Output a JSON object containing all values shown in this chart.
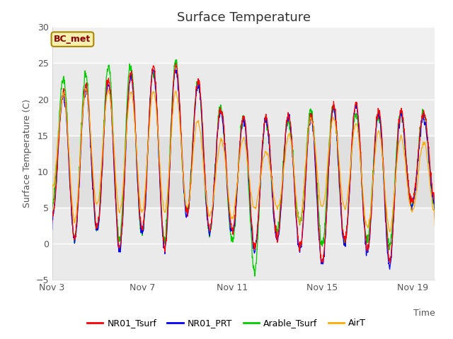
{
  "title": "Surface Temperature",
  "ylabel": "Surface Temperature (C)",
  "xlabel": "Time",
  "annotation": "BC_met",
  "ylim": [
    -5,
    30
  ],
  "yticks": [
    -5,
    0,
    5,
    10,
    15,
    20,
    25,
    30
  ],
  "xtick_labels": [
    "Nov 3",
    "Nov 7",
    "Nov 11",
    "Nov 15",
    "Nov 19"
  ],
  "xtick_pos": [
    0,
    4,
    8,
    12,
    16
  ],
  "xlim": [
    0,
    17
  ],
  "series": [
    "NR01_Tsurf",
    "NR01_PRT",
    "Arable_Tsurf",
    "AirT"
  ],
  "colors": [
    "#ff0000",
    "#0000ff",
    "#00cc00",
    "#ffaa00"
  ],
  "plot_bg_inner": "#e8e8e8",
  "plot_bg_outer": "#f5f5f5",
  "linewidth": 0.9,
  "figsize": [
    6.4,
    4.8
  ],
  "dpi": 100
}
